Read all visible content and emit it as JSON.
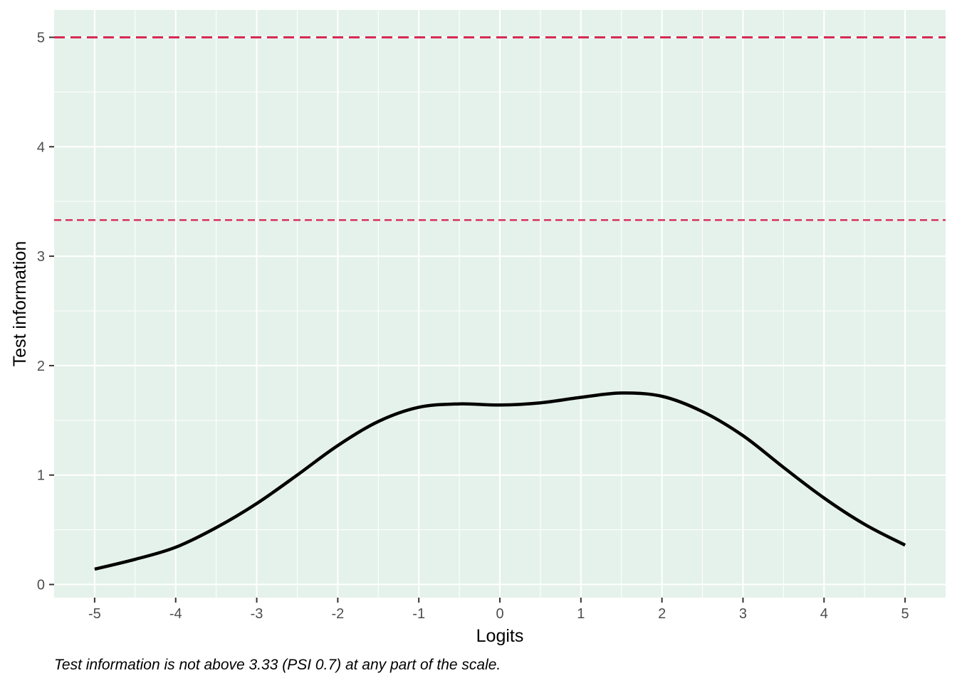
{
  "chart_data": {
    "type": "line",
    "xlabel": "Logits",
    "ylabel": "Test information",
    "caption": "Test information is not above 3.33 (PSI 0.7) at any part of the scale.",
    "xlim": [
      -5.5,
      5.5
    ],
    "ylim": [
      -0.12,
      5.25
    ],
    "x_ticks": [
      -5,
      -4,
      -3,
      -2,
      -1,
      0,
      1,
      2,
      3,
      4,
      5
    ],
    "x_tick_labels": [
      "-5",
      "-4",
      "-3",
      "-2",
      "-1",
      "0",
      "1",
      "2",
      "3",
      "4",
      "5"
    ],
    "y_ticks": [
      0,
      1,
      2,
      3,
      4,
      5
    ],
    "y_tick_labels": [
      "0",
      "1",
      "2",
      "3",
      "4",
      "5"
    ],
    "grid": true,
    "panel_background": "#e5f2eb",
    "series": [
      {
        "color": "#000000",
        "x": [
          -5,
          -4.5,
          -4,
          -3.5,
          -3,
          -2.5,
          -2,
          -1.5,
          -1,
          -0.5,
          0,
          0.5,
          1,
          1.5,
          2,
          2.5,
          3,
          3.5,
          4,
          4.5,
          5
        ],
        "y": [
          0.14,
          0.23,
          0.34,
          0.52,
          0.74,
          1.0,
          1.27,
          1.49,
          1.62,
          1.65,
          1.64,
          1.66,
          1.71,
          1.75,
          1.72,
          1.58,
          1.36,
          1.07,
          0.79,
          0.55,
          0.36
        ]
      }
    ],
    "reference_lines": [
      {
        "y": 5,
        "color": "#d62a55",
        "style": "dashed"
      },
      {
        "y": 3.33,
        "color": "#d62a55",
        "style": "dashed"
      }
    ]
  }
}
